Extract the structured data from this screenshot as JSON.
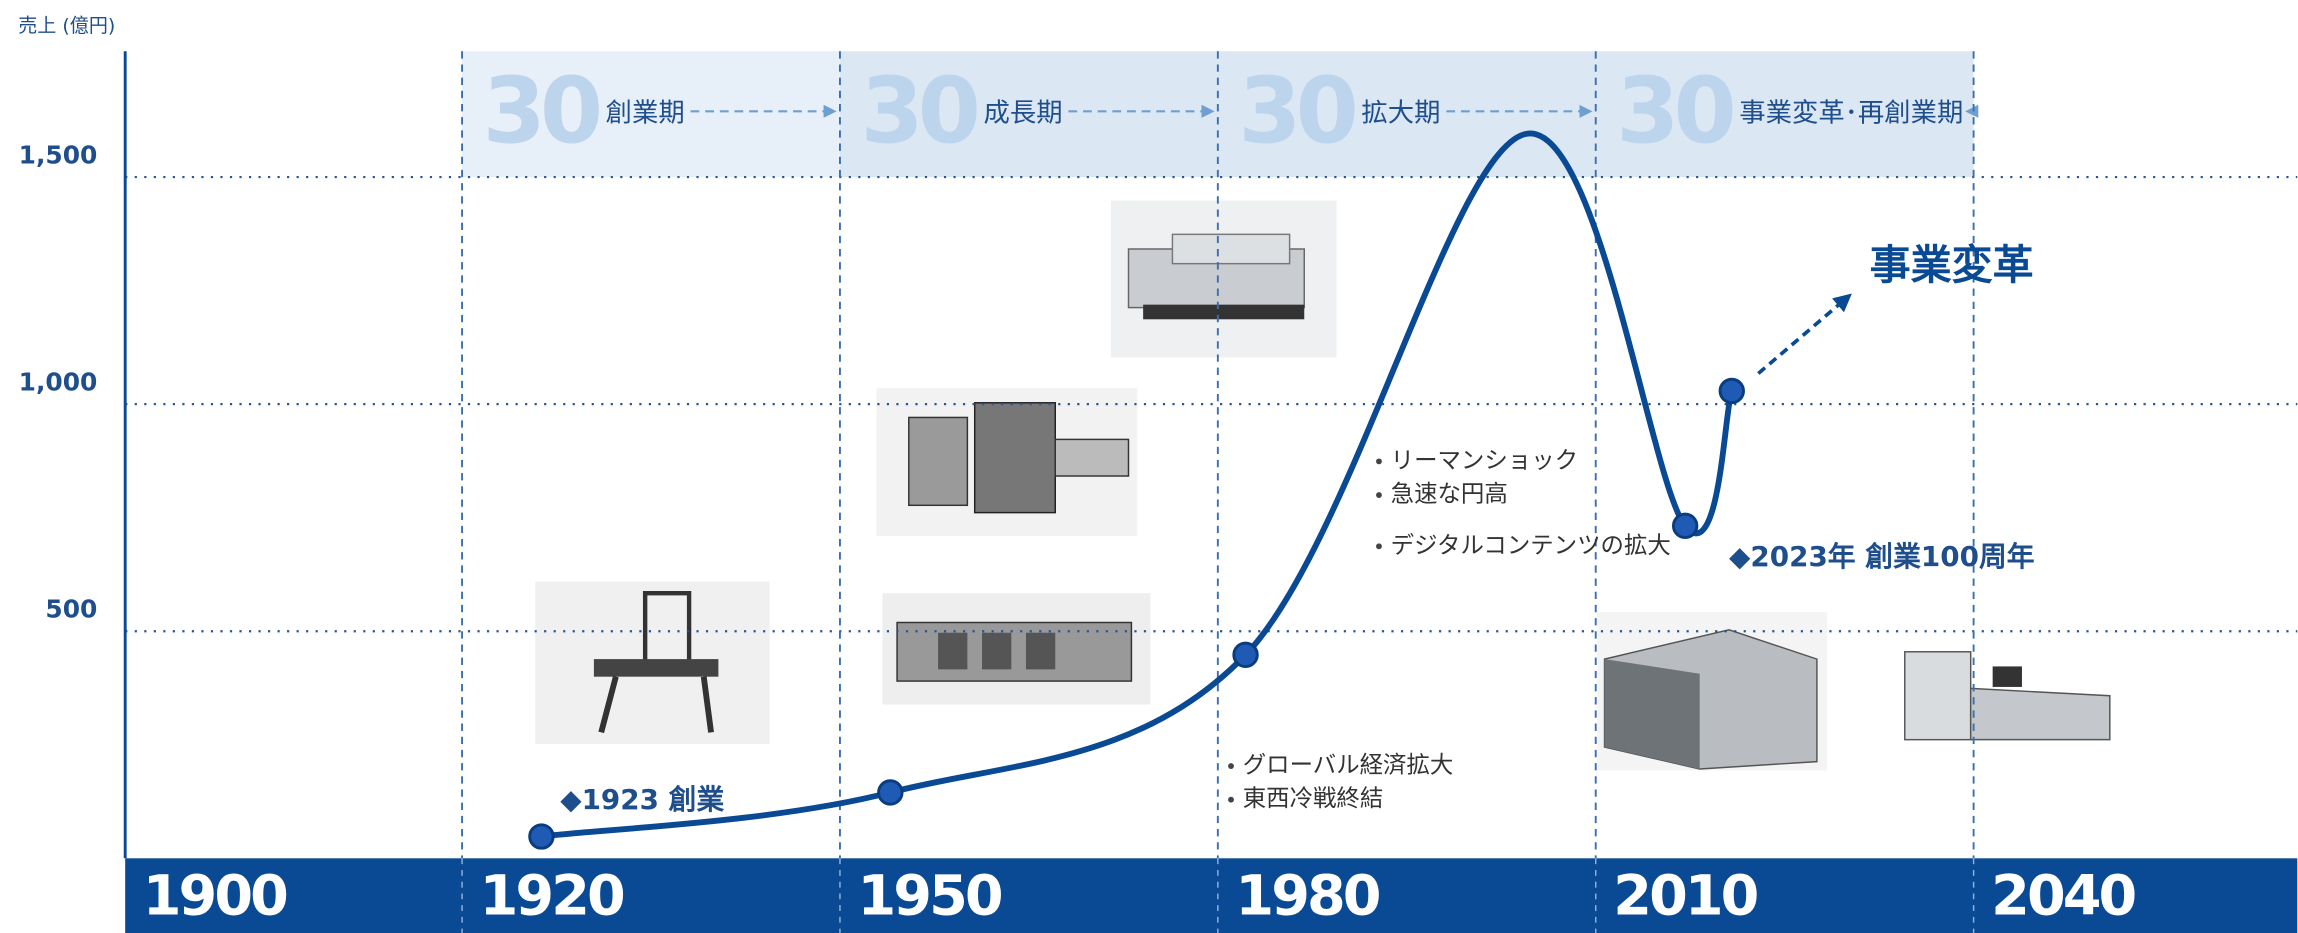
{
  "chart_data": {
    "type": "line",
    "y_label": "売上 (億円)",
    "ylim": [
      0,
      1777
    ],
    "yticks": [
      {
        "value": 500,
        "label": "500"
      },
      {
        "value": 1000,
        "label": "1,000"
      },
      {
        "value": 1500,
        "label": "1,500"
      }
    ],
    "xlim": [
      1900,
      2066
    ],
    "xticks": [
      1900,
      1920,
      1950,
      1980,
      2010,
      2040
    ],
    "grid": true,
    "periods": [
      {
        "start": 1920,
        "end": 1950,
        "number": "30",
        "label": "創業期"
      },
      {
        "start": 1950,
        "end": 1980,
        "number": "30",
        "label": "成長期"
      },
      {
        "start": 1980,
        "end": 2010,
        "number": "30",
        "label": "拡大期"
      },
      {
        "start": 2010,
        "end": 2040,
        "number": "30",
        "label": "事業変革･再創業期"
      }
    ],
    "series": [
      {
        "color": "#0a4a94",
        "x": [
          1926.3,
          1954,
          1982.2,
          2004.3,
          2017.1,
          2020.8
        ],
        "values": [
          48,
          145,
          448,
          1594,
          732,
          1029
        ],
        "markers": [
          true,
          true,
          true,
          false,
          true,
          true
        ]
      }
    ],
    "annotations": {
      "founding": "◆1923 創業",
      "centennial": "◆2023年 創業100周年",
      "transformation": "事業変革",
      "events_1980s": [
        "グローバル経済拡大",
        "東西冷戦終結"
      ],
      "events_2000s": [
        "リーマンショック",
        "急速な円高",
        "デジタルコンテンツの拡大"
      ]
    }
  }
}
